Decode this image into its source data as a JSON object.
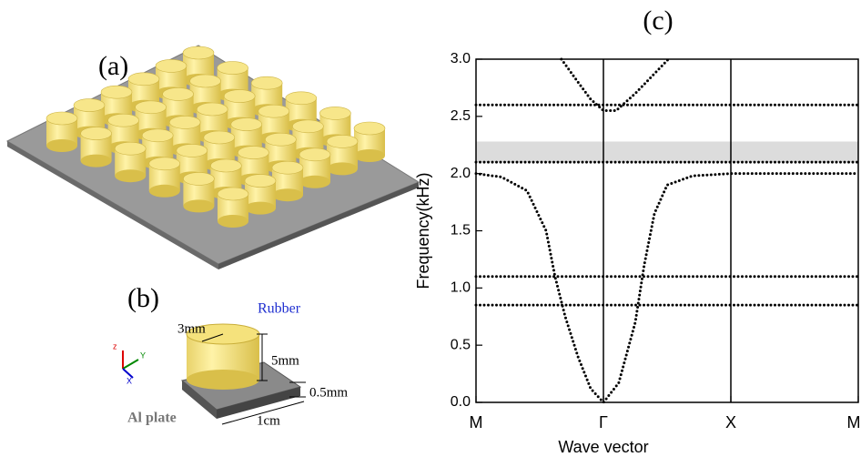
{
  "figure": {
    "panel_a": "(a)",
    "panel_b": "(b)",
    "rubber": "Rubber",
    "radius": "3mm",
    "height": "5mm",
    "thickness": "0.5mm",
    "width": "1cm",
    "plate": "Al plate",
    "axis_z": "z",
    "axis_y": "Y",
    "axis_x": "X"
  },
  "chart_data": {
    "type": "scatter",
    "title": "(c)",
    "x_label": "Wave vector",
    "y_label": "Frequency(kHz)",
    "xlim": [
      0,
      3
    ],
    "ylim": [
      0,
      3
    ],
    "xticks": [
      {
        "value": 0,
        "label": "M"
      },
      {
        "value": 1,
        "label": "Γ"
      },
      {
        "value": 2,
        "label": "X"
      },
      {
        "value": 3,
        "label": "M"
      }
    ],
    "yticks": [
      {
        "value": 0,
        "label": "0.0"
      },
      {
        "value": 0.5,
        "label": "0.5"
      },
      {
        "value": 1,
        "label": "1.0"
      },
      {
        "value": 1.5,
        "label": "1.5"
      },
      {
        "value": 2,
        "label": "2.0"
      },
      {
        "value": 2.5,
        "label": "2.5"
      },
      {
        "value": 3,
        "label": "3.0"
      }
    ],
    "band_gap": [
      2.1,
      2.28
    ],
    "gap_color": "#dcdcdc",
    "symmetry_lines": [
      1,
      2
    ],
    "series": [
      {
        "color": "#000000",
        "x": [
          0,
          3
        ],
        "values": [
          2.6,
          2.6
        ]
      },
      {
        "color": "#000000",
        "x": [
          0,
          3
        ],
        "values": [
          2.1,
          2.1
        ]
      },
      {
        "color": "#000000",
        "x": [
          0,
          3
        ],
        "values": [
          1.1,
          1.1
        ]
      },
      {
        "color": "#000000",
        "x": [
          0,
          3
        ],
        "values": [
          0.85,
          0.85
        ]
      },
      {
        "color": "#000000",
        "x": [
          0,
          0.2,
          0.4,
          0.55,
          0.62,
          0.7,
          0.8,
          0.9,
          1,
          1.12,
          1.25,
          1.32,
          1.4,
          1.5,
          1.7,
          2,
          2.5,
          3
        ],
        "values": [
          2,
          1.97,
          1.85,
          1.5,
          1.1,
          0.75,
          0.4,
          0.12,
          0,
          0.17,
          0.7,
          1.2,
          1.65,
          1.9,
          1.98,
          2,
          2,
          2
        ]
      },
      {
        "color": "#000000",
        "x": [
          0.67,
          0.8,
          0.9,
          1,
          1.1,
          1.25,
          1.51
        ],
        "values": [
          3,
          2.8,
          2.65,
          2.55,
          2.55,
          2.7,
          3
        ]
      }
    ]
  }
}
